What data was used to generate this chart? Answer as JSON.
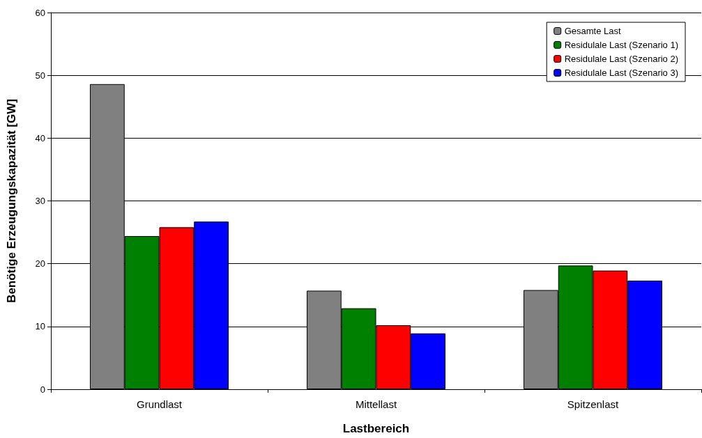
{
  "chart_data": {
    "type": "bar",
    "xlabel": "Lastbereich",
    "ylabel": "Benötige Erzeugungskapazität [GW]",
    "categories": [
      "Grundlast",
      "Mittellast",
      "Spitzenlast"
    ],
    "series": [
      {
        "name": "Gesamte Last",
        "color": "#808080",
        "values": [
          48.6,
          15.7,
          15.8
        ]
      },
      {
        "name": "Residulale Last (Szenario 1)",
        "color": "#008000",
        "values": [
          24.4,
          12.9,
          19.7
        ]
      },
      {
        "name": "Residulale Last (Szenario 2)",
        "color": "#ff0000",
        "values": [
          25.8,
          10.2,
          18.9
        ]
      },
      {
        "name": "Residulale Last (Szenario 3)",
        "color": "#0000ff",
        "values": [
          26.7,
          8.9,
          17.3
        ]
      }
    ],
    "ylim": [
      0,
      60
    ],
    "yticks": [
      0,
      10,
      20,
      30,
      40,
      50,
      60
    ],
    "grid": "y",
    "legend": "top right"
  }
}
